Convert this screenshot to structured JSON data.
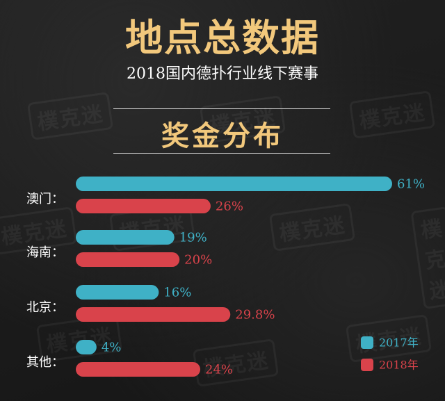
{
  "watermark": "樸克迷",
  "header": {
    "title": "地点总数据",
    "subtitle": "2018国内德扑行业线下赛事",
    "section_title": "奖金分布"
  },
  "colors": {
    "series_2017": "#3fb1c6",
    "series_2018": "#d9434b",
    "title_gold": "#f2c87c"
  },
  "chart_data": {
    "type": "bar",
    "orientation": "horizontal",
    "categories": [
      "澳门：",
      "海南：",
      "北京：",
      "其他："
    ],
    "series": [
      {
        "name": "2017年",
        "values": [
          61,
          19,
          16,
          4
        ],
        "labels": [
          "61%",
          "19%",
          "16%",
          "4%"
        ]
      },
      {
        "name": "2018年",
        "values": [
          26,
          20,
          29.8,
          24
        ],
        "labels": [
          "26%",
          "20%",
          "29.8%",
          "24%"
        ]
      }
    ],
    "xlim": [
      0,
      61
    ],
    "legend_position": "bottom-right",
    "grid": false
  }
}
